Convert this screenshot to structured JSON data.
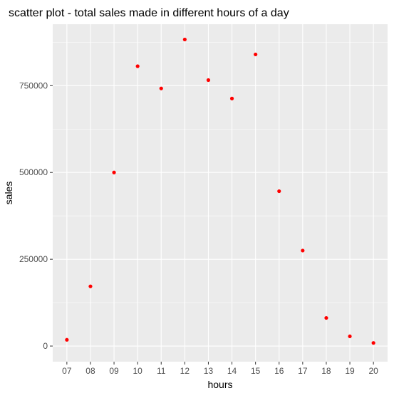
{
  "chart_data": {
    "type": "scatter",
    "title": "scatter plot - total sales made in different hours of a day",
    "xlabel": "hours",
    "ylabel": "sales",
    "x": [
      "07",
      "08",
      "09",
      "10",
      "11",
      "12",
      "13",
      "14",
      "15",
      "16",
      "17",
      "18",
      "19",
      "20"
    ],
    "y": [
      18000,
      172000,
      500000,
      806000,
      742000,
      883000,
      766000,
      713000,
      840000,
      446000,
      275000,
      81000,
      28000,
      9000
    ],
    "y_ticks": [
      0,
      250000,
      500000,
      750000
    ],
    "y_tick_labels": [
      "0",
      "250000",
      "500000",
      "750000"
    ],
    "ylim": [
      -45000,
      927000
    ],
    "grid": true,
    "point_color": "#ff0000",
    "panel_background": "#ebebeb",
    "grid_color": "#ffffff"
  }
}
